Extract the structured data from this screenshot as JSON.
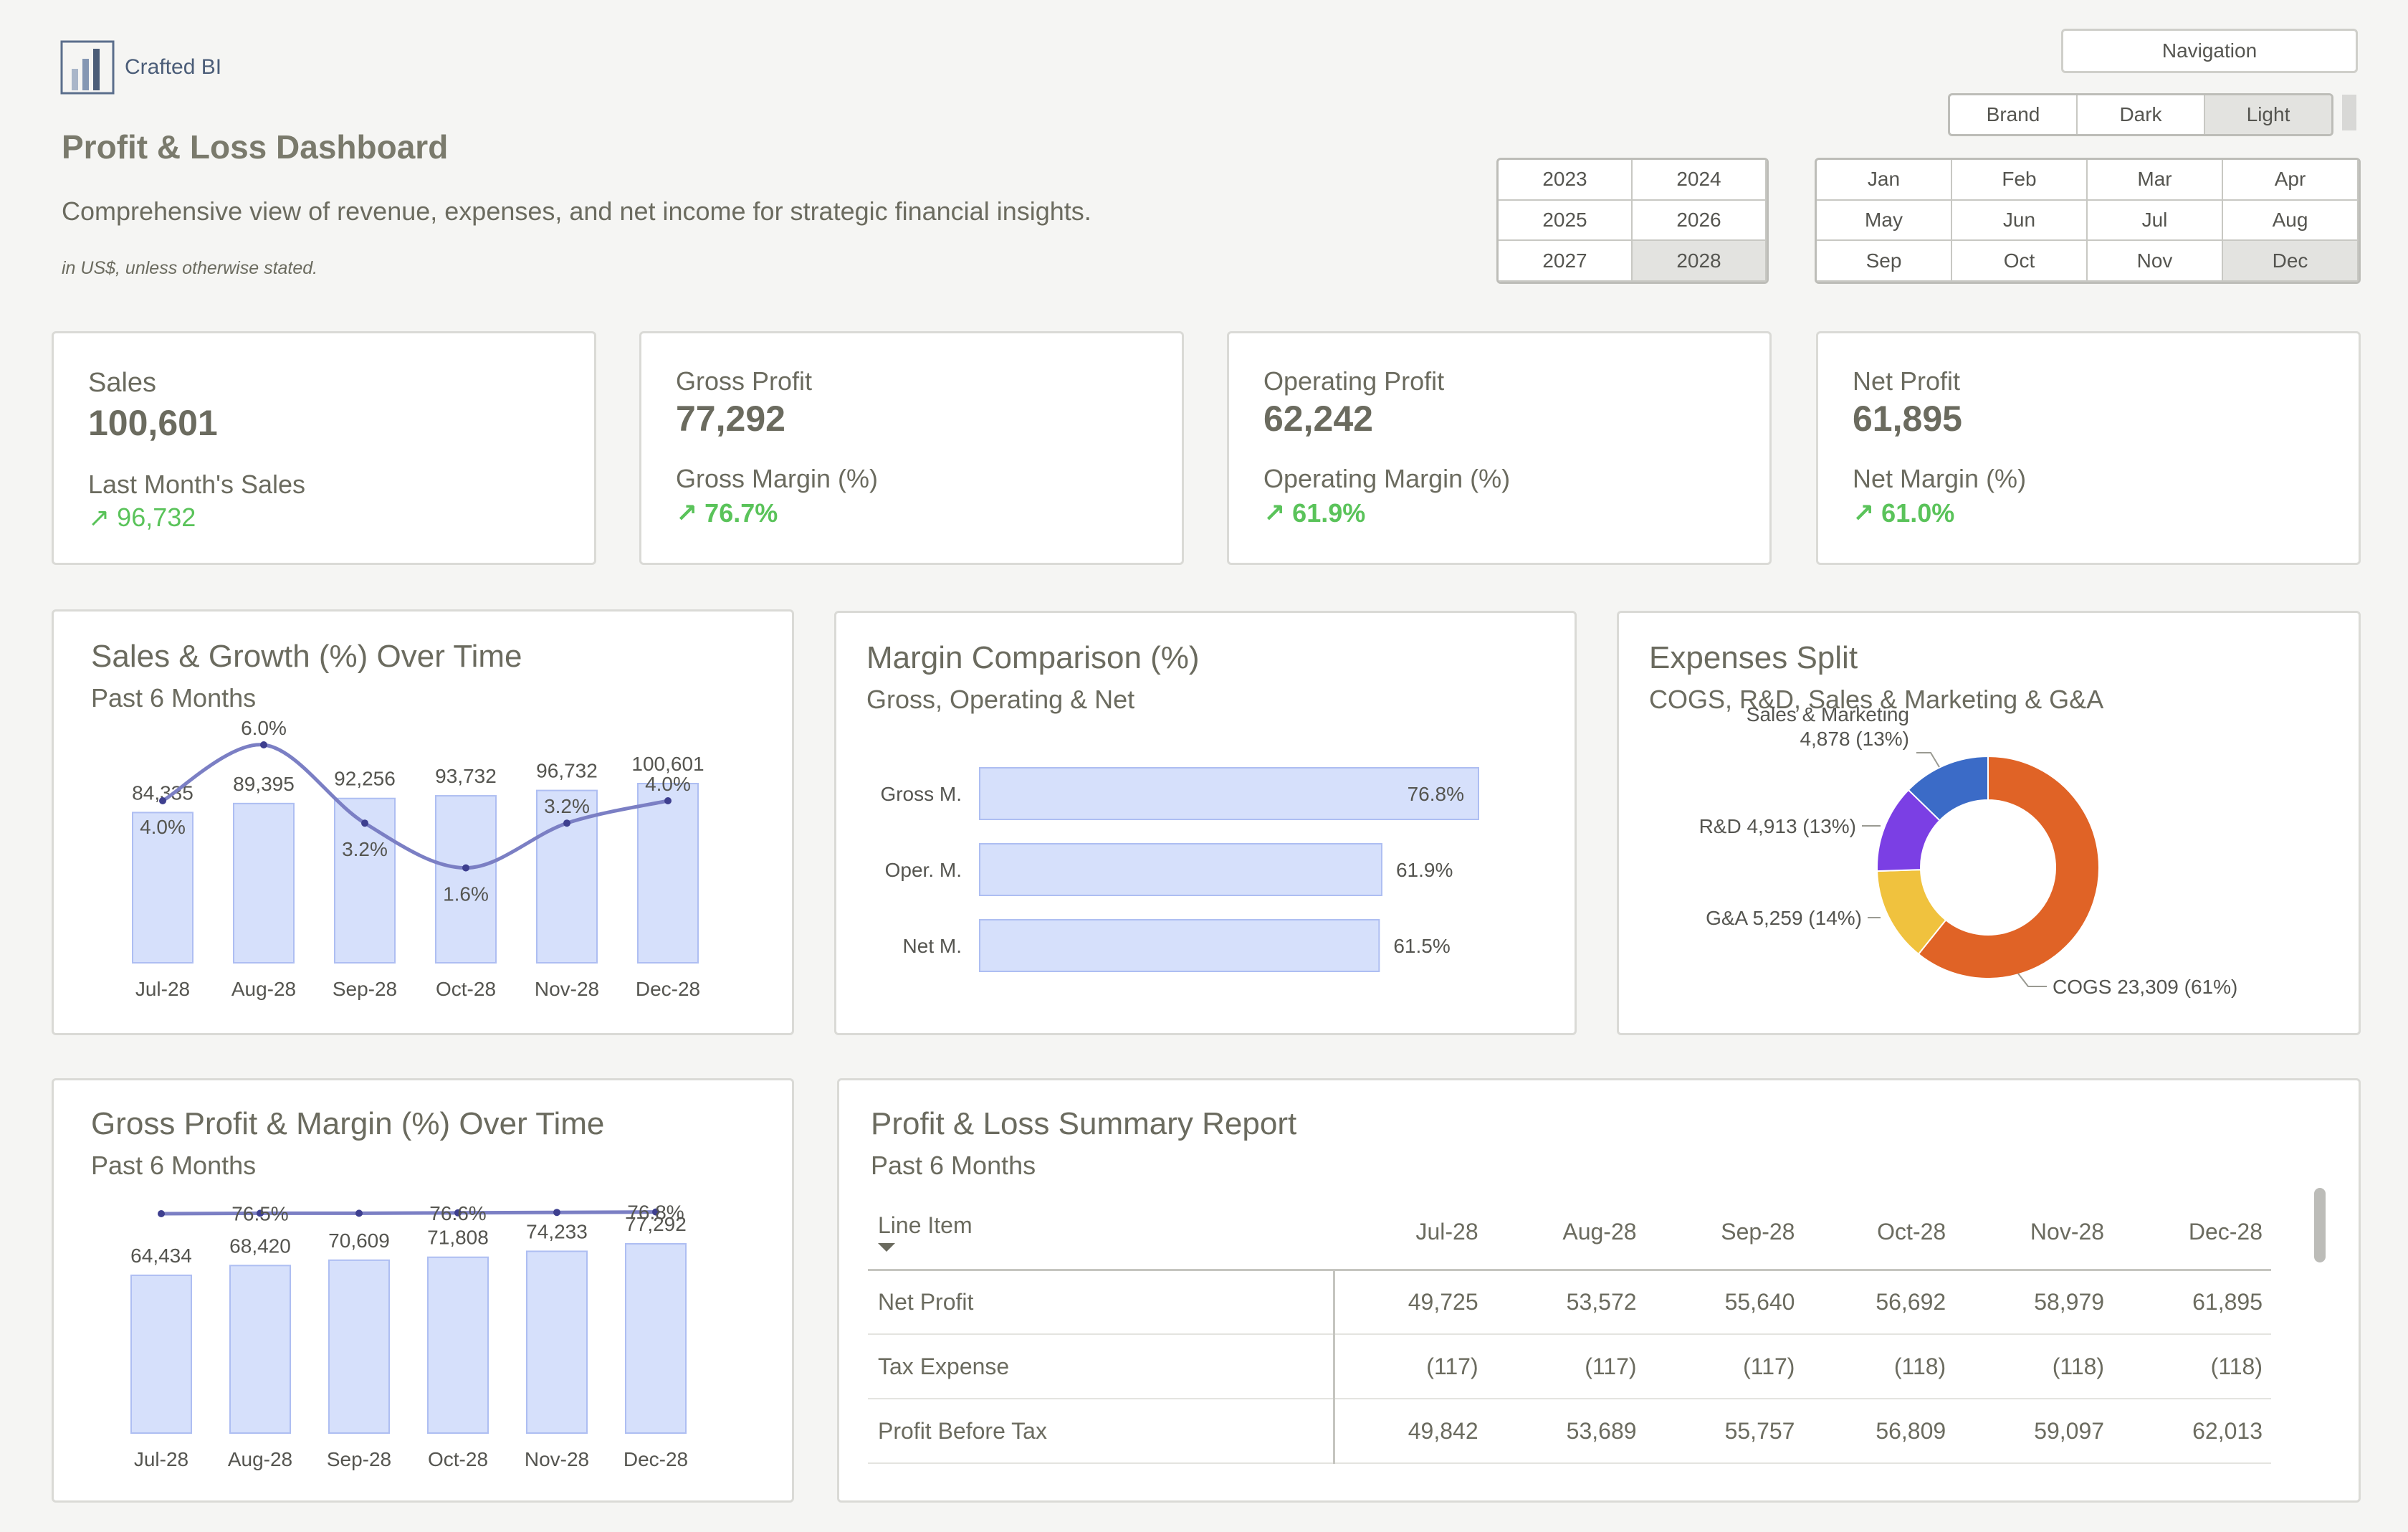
{
  "app": {
    "logo_text": "Crafted BI"
  },
  "header": {
    "title": "Profit & Loss Dashboard",
    "subtitle": "Comprehensive view of revenue, expenses, and net income for strategic financial insights.",
    "note": "in US$, unless otherwise stated."
  },
  "controls": {
    "navigation_label": "Navigation",
    "themes": [
      "Brand",
      "Dark",
      "Light"
    ],
    "selected_theme": "Light",
    "years": [
      "2023",
      "2024",
      "2025",
      "2026",
      "2027",
      "2028"
    ],
    "selected_year": "2028",
    "months": [
      "Jan",
      "Feb",
      "Mar",
      "Apr",
      "May",
      "Jun",
      "Jul",
      "Aug",
      "Sep",
      "Oct",
      "Nov",
      "Dec"
    ],
    "selected_month": "Dec"
  },
  "kpis": {
    "sales": {
      "label": "Sales",
      "value": "100,601",
      "sub_label": "Last Month's Sales",
      "delta": "↗ 96,732"
    },
    "gross_profit": {
      "label": "Gross Profit",
      "value": "77,292",
      "sub_label": "Gross Margin (%)",
      "delta": "↗ 76.7%"
    },
    "operating_profit": {
      "label": "Operating Profit",
      "value": "62,242",
      "sub_label": "Operating Margin (%)",
      "delta": "↗ 61.9%"
    },
    "net_profit": {
      "label": "Net Profit",
      "value": "61,895",
      "sub_label": "Net Margin (%)",
      "delta": "↗ 61.0%"
    }
  },
  "sales_growth": {
    "title": "Sales & Growth (%) Over Time",
    "subtitle": "Past 6 Months"
  },
  "margin_comparison": {
    "title": "Margin Comparison (%)",
    "subtitle": "Gross, Operating & Net"
  },
  "expenses_split": {
    "title": "Expenses Split",
    "subtitle": "COGS, R&D, Sales & Marketing & G&A"
  },
  "gross_profit_chart": {
    "title": "Gross Profit & Margin (%) Over Time",
    "subtitle": "Past 6 Months"
  },
  "report": {
    "title": "Profit & Loss Summary Report",
    "subtitle": "Past 6 Months",
    "columns": [
      "Line Item",
      "Jul-28",
      "Aug-28",
      "Sep-28",
      "Oct-28",
      "Nov-28",
      "Dec-28"
    ],
    "rows": [
      [
        "Net Profit",
        "49,725",
        "53,572",
        "55,640",
        "56,692",
        "58,979",
        "61,895"
      ],
      [
        "Tax Expense",
        "(117)",
        "(117)",
        "(117)",
        "(118)",
        "(118)",
        "(118)"
      ],
      [
        "Profit Before Tax",
        "49,842",
        "53,689",
        "55,757",
        "56,809",
        "59,097",
        "62,013"
      ]
    ]
  },
  "colors": {
    "bar_fill": "#d6e0fb",
    "bar_stroke": "#aebef2",
    "line": "#7b7fc4",
    "positive": "#5ac35a",
    "cogs": "#e06326",
    "ga": "#f0c23e",
    "rd": "#7b3fe4",
    "sm": "#3b6bc7"
  },
  "chart_data": [
    {
      "type": "bar",
      "id": "sales_growth",
      "categories": [
        "Jul-28",
        "Aug-28",
        "Sep-28",
        "Oct-28",
        "Nov-28",
        "Dec-28"
      ],
      "series": [
        {
          "name": "Sales",
          "values": [
            84335,
            89395,
            92256,
            93732,
            96732,
            100601
          ],
          "labels": [
            "84,335",
            "89,395",
            "92,256",
            "93,732",
            "96,732",
            "100,601"
          ]
        },
        {
          "name": "Growth (%)",
          "values": [
            4.0,
            6.0,
            3.2,
            1.6,
            3.2,
            4.0
          ],
          "labels": [
            "4.0%",
            "6.0%",
            "3.2%",
            "1.6%",
            "3.2%",
            "4.0%"
          ]
        }
      ]
    },
    {
      "type": "bar",
      "id": "margin_comparison",
      "orientation": "horizontal",
      "categories": [
        "Gross M.",
        "Oper. M.",
        "Net M."
      ],
      "values": [
        76.8,
        61.9,
        61.5
      ],
      "labels": [
        "76.8%",
        "61.9%",
        "61.5%"
      ]
    },
    {
      "type": "pie",
      "id": "expenses_split",
      "donut": true,
      "categories": [
        "COGS",
        "G&A",
        "R&D",
        "Sales & Marketing"
      ],
      "values": [
        23309,
        5259,
        4913,
        4878
      ],
      "labels": [
        "COGS 23,309 (61%)",
        "G&A 5,259 (14%)",
        "R&D 4,913 (13%)",
        "Sales & Marketing 4,878 (13%)"
      ]
    },
    {
      "type": "bar",
      "id": "gross_profit",
      "categories": [
        "Jul-28",
        "Aug-28",
        "Sep-28",
        "Oct-28",
        "Nov-28",
        "Dec-28"
      ],
      "series": [
        {
          "name": "Gross Profit",
          "values": [
            64434,
            68420,
            70609,
            71808,
            74233,
            77292
          ],
          "labels": [
            "64,434",
            "68,420",
            "70,609",
            "71,808",
            "74,233",
            "77,292"
          ]
        },
        {
          "name": "Margin (%)",
          "values": [
            76.4,
            76.5,
            76.5,
            76.6,
            76.7,
            76.8
          ],
          "labels": [
            "",
            "76.5%",
            "",
            "76.6%",
            "",
            "76.8%"
          ]
        }
      ]
    }
  ]
}
